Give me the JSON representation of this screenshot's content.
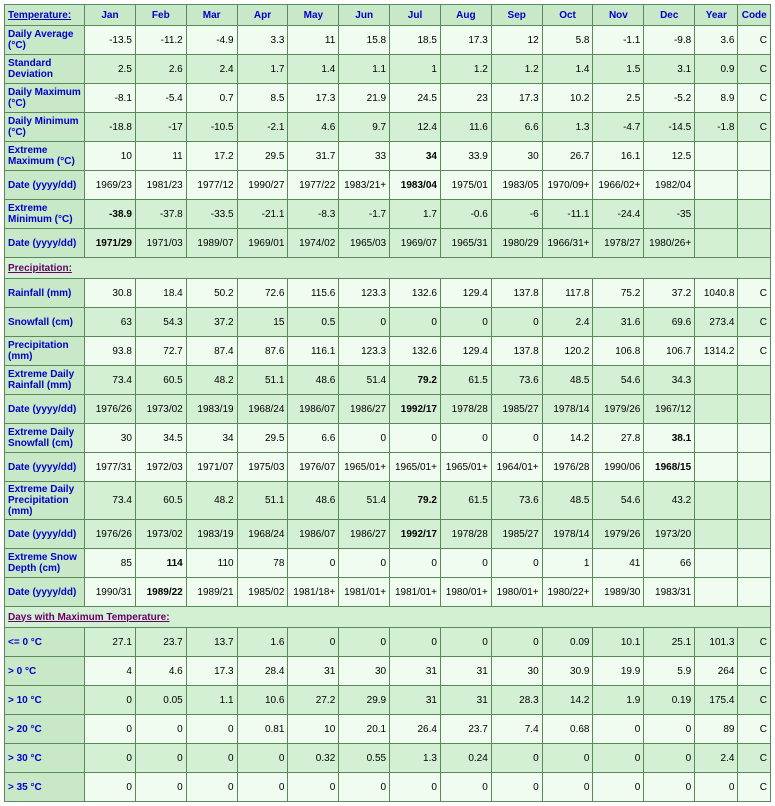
{
  "header": {
    "rowTitle": "Temperature:",
    "months": [
      "Jan",
      "Feb",
      "Mar",
      "Apr",
      "May",
      "Jun",
      "Jul",
      "Aug",
      "Sep",
      "Oct",
      "Nov",
      "Dec"
    ],
    "year": "Year",
    "code": "Code"
  },
  "sections": [
    {
      "title": null,
      "rows": [
        {
          "label": "Daily Average (°C)",
          "shade": "light",
          "vals": [
            "-13.5",
            "-11.2",
            "-4.9",
            "3.3",
            "11",
            "15.8",
            "18.5",
            "17.3",
            "12",
            "5.8",
            "-1.1",
            "-9.8",
            "3.6",
            "C"
          ],
          "bold": []
        },
        {
          "label": "Standard Deviation",
          "shade": "dark",
          "vals": [
            "2.5",
            "2.6",
            "2.4",
            "1.7",
            "1.4",
            "1.1",
            "1",
            "1.2",
            "1.2",
            "1.4",
            "1.5",
            "3.1",
            "0.9",
            "C"
          ],
          "bold": []
        },
        {
          "label": "Daily Maximum (°C)",
          "shade": "light",
          "vals": [
            "-8.1",
            "-5.4",
            "0.7",
            "8.5",
            "17.3",
            "21.9",
            "24.5",
            "23",
            "17.3",
            "10.2",
            "2.5",
            "-5.2",
            "8.9",
            "C"
          ],
          "bold": []
        },
        {
          "label": "Daily Minimum (°C)",
          "shade": "dark",
          "vals": [
            "-18.8",
            "-17",
            "-10.5",
            "-2.1",
            "4.6",
            "9.7",
            "12.4",
            "11.6",
            "6.6",
            "1.3",
            "-4.7",
            "-14.5",
            "-1.8",
            "C"
          ],
          "bold": []
        },
        {
          "label": "Extreme Maximum (°C)",
          "shade": "light",
          "vals": [
            "10",
            "11",
            "17.2",
            "29.5",
            "31.7",
            "33",
            "34",
            "33.9",
            "30",
            "26.7",
            "16.1",
            "12.5",
            "",
            ""
          ],
          "bold": [
            6
          ]
        },
        {
          "label": "Date (yyyy/dd)",
          "shade": "light",
          "vals": [
            "1969/23",
            "1981/23",
            "1977/12",
            "1990/27",
            "1977/22",
            "1983/21+",
            "1983/04",
            "1975/01",
            "1983/05",
            "1970/09+",
            "1966/02+",
            "1982/04",
            "",
            ""
          ],
          "bold": [
            6
          ]
        },
        {
          "label": "Extreme Minimum (°C)",
          "shade": "dark",
          "vals": [
            "-38.9",
            "-37.8",
            "-33.5",
            "-21.1",
            "-8.3",
            "-1.7",
            "1.7",
            "-0.6",
            "-6",
            "-11.1",
            "-24.4",
            "-35",
            "",
            ""
          ],
          "bold": [
            0
          ]
        },
        {
          "label": "Date (yyyy/dd)",
          "shade": "dark",
          "vals": [
            "1971/29",
            "1971/03",
            "1989/07",
            "1969/01",
            "1974/02",
            "1965/03",
            "1969/07",
            "1965/31",
            "1980/29",
            "1966/31+",
            "1978/27",
            "1980/26+",
            "",
            ""
          ],
          "bold": [
            0
          ]
        }
      ]
    },
    {
      "title": "Precipitation:",
      "rows": [
        {
          "label": "Rainfall (mm)",
          "shade": "light",
          "vals": [
            "30.8",
            "18.4",
            "50.2",
            "72.6",
            "115.6",
            "123.3",
            "132.6",
            "129.4",
            "137.8",
            "117.8",
            "75.2",
            "37.2",
            "1040.8",
            "C"
          ],
          "bold": []
        },
        {
          "label": "Snowfall (cm)",
          "shade": "dark",
          "vals": [
            "63",
            "54.3",
            "37.2",
            "15",
            "0.5",
            "0",
            "0",
            "0",
            "0",
            "2.4",
            "31.6",
            "69.6",
            "273.4",
            "C"
          ],
          "bold": []
        },
        {
          "label": "Precipitation (mm)",
          "shade": "light",
          "vals": [
            "93.8",
            "72.7",
            "87.4",
            "87.6",
            "116.1",
            "123.3",
            "132.6",
            "129.4",
            "137.8",
            "120.2",
            "106.8",
            "106.7",
            "1314.2",
            "C"
          ],
          "bold": []
        },
        {
          "label": "Extreme Daily Rainfall (mm)",
          "shade": "dark",
          "vals": [
            "73.4",
            "60.5",
            "48.2",
            "51.1",
            "48.6",
            "51.4",
            "79.2",
            "61.5",
            "73.6",
            "48.5",
            "54.6",
            "34.3",
            "",
            ""
          ],
          "bold": [
            6
          ]
        },
        {
          "label": "Date (yyyy/dd)",
          "shade": "dark",
          "vals": [
            "1976/26",
            "1973/02",
            "1983/19",
            "1968/24",
            "1986/07",
            "1986/27",
            "1992/17",
            "1978/28",
            "1985/27",
            "1978/14",
            "1979/26",
            "1967/12",
            "",
            ""
          ],
          "bold": [
            6
          ]
        },
        {
          "label": "Extreme Daily Snowfall (cm)",
          "shade": "light",
          "vals": [
            "30",
            "34.5",
            "34",
            "29.5",
            "6.6",
            "0",
            "0",
            "0",
            "0",
            "14.2",
            "27.8",
            "38.1",
            "",
            ""
          ],
          "bold": [
            11
          ]
        },
        {
          "label": "Date (yyyy/dd)",
          "shade": "light",
          "vals": [
            "1977/31",
            "1972/03",
            "1971/07",
            "1975/03",
            "1976/07",
            "1965/01+",
            "1965/01+",
            "1965/01+",
            "1964/01+",
            "1976/28",
            "1990/06",
            "1968/15",
            "",
            ""
          ],
          "bold": [
            11
          ]
        },
        {
          "label": "Extreme Daily Precipitation (mm)",
          "shade": "dark",
          "vals": [
            "73.4",
            "60.5",
            "48.2",
            "51.1",
            "48.6",
            "51.4",
            "79.2",
            "61.5",
            "73.6",
            "48.5",
            "54.6",
            "43.2",
            "",
            ""
          ],
          "bold": [
            6
          ]
        },
        {
          "label": "Date (yyyy/dd)",
          "shade": "dark",
          "vals": [
            "1976/26",
            "1973/02",
            "1983/19",
            "1968/24",
            "1986/07",
            "1986/27",
            "1992/17",
            "1978/28",
            "1985/27",
            "1978/14",
            "1979/26",
            "1973/20",
            "",
            ""
          ],
          "bold": [
            6
          ]
        },
        {
          "label": "Extreme Snow Depth (cm)",
          "shade": "light",
          "vals": [
            "85",
            "114",
            "110",
            "78",
            "0",
            "0",
            "0",
            "0",
            "0",
            "1",
            "41",
            "66",
            "",
            ""
          ],
          "bold": [
            1
          ]
        },
        {
          "label": "Date (yyyy/dd)",
          "shade": "light",
          "vals": [
            "1990/31",
            "1989/22",
            "1989/21",
            "1985/02",
            "1981/18+",
            "1981/01+",
            "1981/01+",
            "1980/01+",
            "1980/01+",
            "1980/22+",
            "1989/30",
            "1983/31",
            "",
            ""
          ],
          "bold": [
            1
          ]
        }
      ]
    },
    {
      "title": "Days with Maximum Temperature:",
      "rows": [
        {
          "label": "<= 0 °C",
          "shade": "dark",
          "vals": [
            "27.1",
            "23.7",
            "13.7",
            "1.6",
            "0",
            "0",
            "0",
            "0",
            "0",
            "0.09",
            "10.1",
            "25.1",
            "101.3",
            "C"
          ],
          "bold": []
        },
        {
          "label": "> 0 °C",
          "shade": "light",
          "vals": [
            "4",
            "4.6",
            "17.3",
            "28.4",
            "31",
            "30",
            "31",
            "31",
            "30",
            "30.9",
            "19.9",
            "5.9",
            "264",
            "C"
          ],
          "bold": []
        },
        {
          "label": "> 10 °C",
          "shade": "dark",
          "vals": [
            "0",
            "0.05",
            "1.1",
            "10.6",
            "27.2",
            "29.9",
            "31",
            "31",
            "28.3",
            "14.2",
            "1.9",
            "0.19",
            "175.4",
            "C"
          ],
          "bold": []
        },
        {
          "label": "> 20 °C",
          "shade": "light",
          "vals": [
            "0",
            "0",
            "0",
            "0.81",
            "10",
            "20.1",
            "26.4",
            "23.7",
            "7.4",
            "0.68",
            "0",
            "0",
            "89",
            "C"
          ],
          "bold": []
        },
        {
          "label": "> 30 °C",
          "shade": "dark",
          "vals": [
            "0",
            "0",
            "0",
            "0",
            "0.32",
            "0.55",
            "1.3",
            "0.24",
            "0",
            "0",
            "0",
            "0",
            "2.4",
            "C"
          ],
          "bold": []
        },
        {
          "label": "> 35 °C",
          "shade": "light",
          "vals": [
            "0",
            "0",
            "0",
            "0",
            "0",
            "0",
            "0",
            "0",
            "0",
            "0",
            "0",
            "0",
            "0",
            "C"
          ],
          "bold": []
        }
      ]
    }
  ]
}
